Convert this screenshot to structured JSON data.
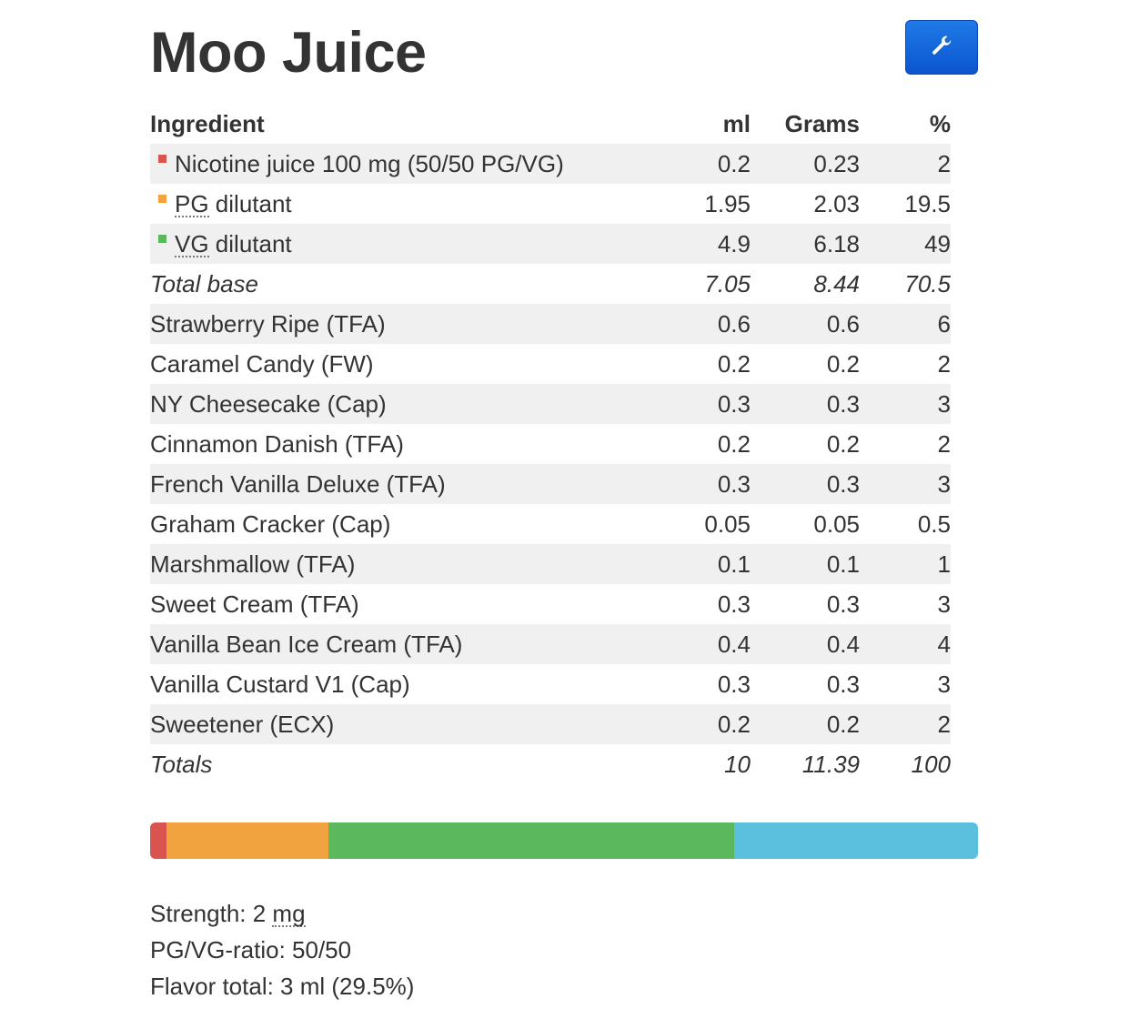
{
  "recipe": {
    "title": "Moo Juice"
  },
  "toolbar": {
    "tools_icon": "wrench-icon"
  },
  "table": {
    "headers": {
      "ingredient": "Ingredient",
      "ml": "ml",
      "grams": "Grams",
      "percent": "%"
    },
    "base_rows": [
      {
        "name": "Nicotine juice 100 mg (50/50 PG/VG)",
        "ml": "0.2",
        "grams": "0.23",
        "percent": "2",
        "color": "#d9534f"
      },
      {
        "name": "PG",
        "suffix": " dilutant",
        "ml": "1.95",
        "grams": "2.03",
        "percent": "19.5",
        "color": "#f0a33e"
      },
      {
        "name": "VG",
        "suffix": " dilutant",
        "ml": "4.9",
        "grams": "6.18",
        "percent": "49",
        "color": "#5cb85c"
      }
    ],
    "total_base": {
      "label": "Total base",
      "ml": "7.05",
      "grams": "8.44",
      "percent": "70.5"
    },
    "flavors": [
      {
        "name": "Strawberry Ripe (TFA)",
        "ml": "0.6",
        "grams": "0.6",
        "percent": "6"
      },
      {
        "name": "Caramel Candy (FW)",
        "ml": "0.2",
        "grams": "0.2",
        "percent": "2"
      },
      {
        "name": "NY Cheesecake (Cap)",
        "ml": "0.3",
        "grams": "0.3",
        "percent": "3"
      },
      {
        "name": "Cinnamon Danish (TFA)",
        "ml": "0.2",
        "grams": "0.2",
        "percent": "2"
      },
      {
        "name": "French Vanilla Deluxe (TFA)",
        "ml": "0.3",
        "grams": "0.3",
        "percent": "3"
      },
      {
        "name": "Graham Cracker (Cap)",
        "ml": "0.05",
        "grams": "0.05",
        "percent": "0.5"
      },
      {
        "name": "Marshmallow (TFA)",
        "ml": "0.1",
        "grams": "0.1",
        "percent": "1"
      },
      {
        "name": "Sweet Cream (TFA)",
        "ml": "0.3",
        "grams": "0.3",
        "percent": "3"
      },
      {
        "name": "Vanilla Bean Ice Cream (TFA)",
        "ml": "0.4",
        "grams": "0.4",
        "percent": "4"
      },
      {
        "name": "Vanilla Custard V1 (Cap)",
        "ml": "0.3",
        "grams": "0.3",
        "percent": "3"
      },
      {
        "name": "Sweetener (ECX)",
        "ml": "0.2",
        "grams": "0.2",
        "percent": "2"
      }
    ],
    "totals": {
      "label": "Totals",
      "ml": "10",
      "grams": "11.39",
      "percent": "100"
    }
  },
  "composition_bar": {
    "segments": [
      {
        "name": "nicotine",
        "percent": 2,
        "color": "#d9534f"
      },
      {
        "name": "pg",
        "percent": 19.5,
        "color": "#f0a33e"
      },
      {
        "name": "vg",
        "percent": 49,
        "color": "#5cb85c"
      },
      {
        "name": "flavor",
        "percent": 29.5,
        "color": "#5bc0de"
      }
    ]
  },
  "summary": {
    "strength_label": "Strength: 2 ",
    "strength_unit": "mg",
    "ratio": "PG/VG-ratio: 50/50",
    "flavor_total": "Flavor total: 3 ml (29.5%)"
  }
}
